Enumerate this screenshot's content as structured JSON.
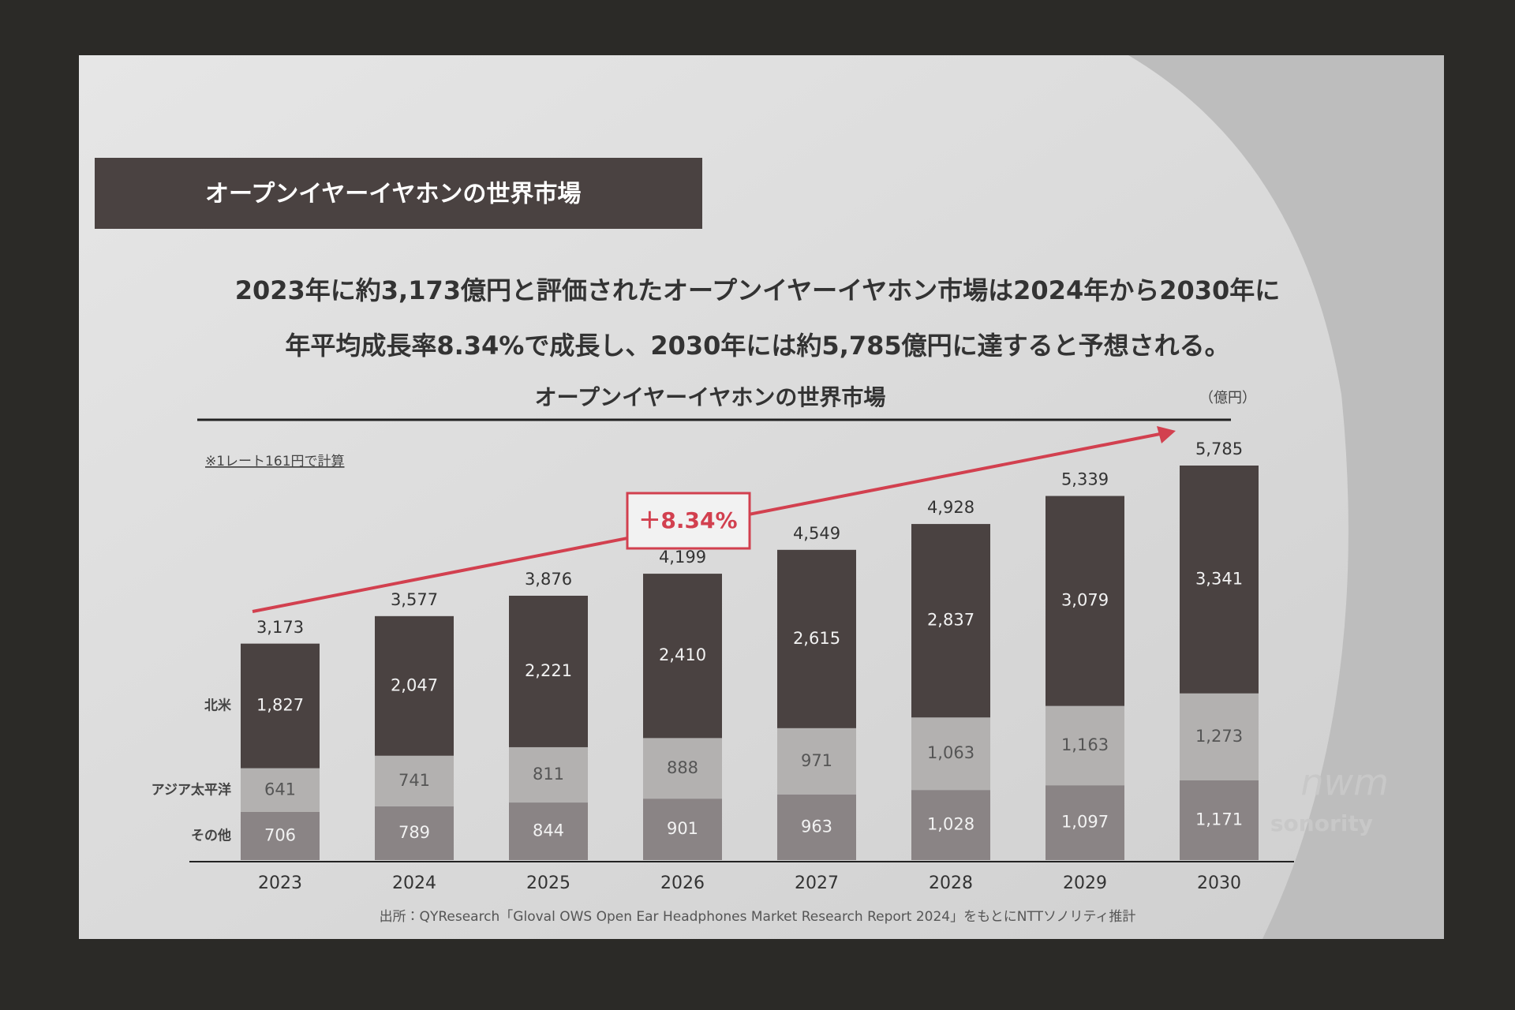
{
  "header": {
    "title": "オープンイヤーイヤホンの世界市場"
  },
  "summary": [
    "2023年に約3,173億円と評価されたオープンイヤーイヤホン市場は2024年から2030年に",
    "年平均成長率8.34%で成長し、2030年には約5,785億円に達すると予想される。"
  ],
  "chart_data": {
    "type": "bar",
    "stacked": true,
    "title": "オープンイヤーイヤホンの世界市場",
    "unit": "（億円）",
    "note": "※1レート161円で計算",
    "annotation": "＋8.34%",
    "source": "出所：QYResearch「Gloval OWS Open Ear Headphones Market Research Report 2024」をもとにNTTソノリティ推計",
    "categories": [
      "2023",
      "2024",
      "2025",
      "2026",
      "2027",
      "2028",
      "2029",
      "2030"
    ],
    "series": [
      {
        "name": "その他",
        "color": "#8a8485",
        "values": [
          706,
          789,
          844,
          901,
          963,
          1028,
          1097,
          1171
        ],
        "value_labels": [
          "706",
          "789",
          "844",
          "901",
          "963",
          "1,028",
          "1,097",
          "1,171"
        ]
      },
      {
        "name": "アジア太平洋",
        "color": "#b3b1b0",
        "values": [
          641,
          741,
          811,
          888,
          971,
          1063,
          1163,
          1273
        ],
        "value_labels": [
          "641",
          "741",
          "811",
          "888",
          "971",
          "1,063",
          "1,163",
          "1,273"
        ]
      },
      {
        "name": "北米",
        "color": "#4a4241",
        "values": [
          1827,
          2047,
          2221,
          2410,
          2615,
          2837,
          3079,
          3341
        ],
        "value_labels": [
          "1,827",
          "2,047",
          "2,221",
          "2,410",
          "2,615",
          "2,837",
          "3,079",
          "3,341"
        ]
      }
    ],
    "totals": [
      3173,
      3577,
      3876,
      4199,
      4549,
      4928,
      5339,
      5785
    ],
    "total_labels": [
      "3,173",
      "3,577",
      "3,876",
      "4,199",
      "4,549",
      "4,928",
      "5,339",
      "5,785"
    ]
  },
  "logo": {
    "mark": "nwm",
    "name": "sonority"
  }
}
